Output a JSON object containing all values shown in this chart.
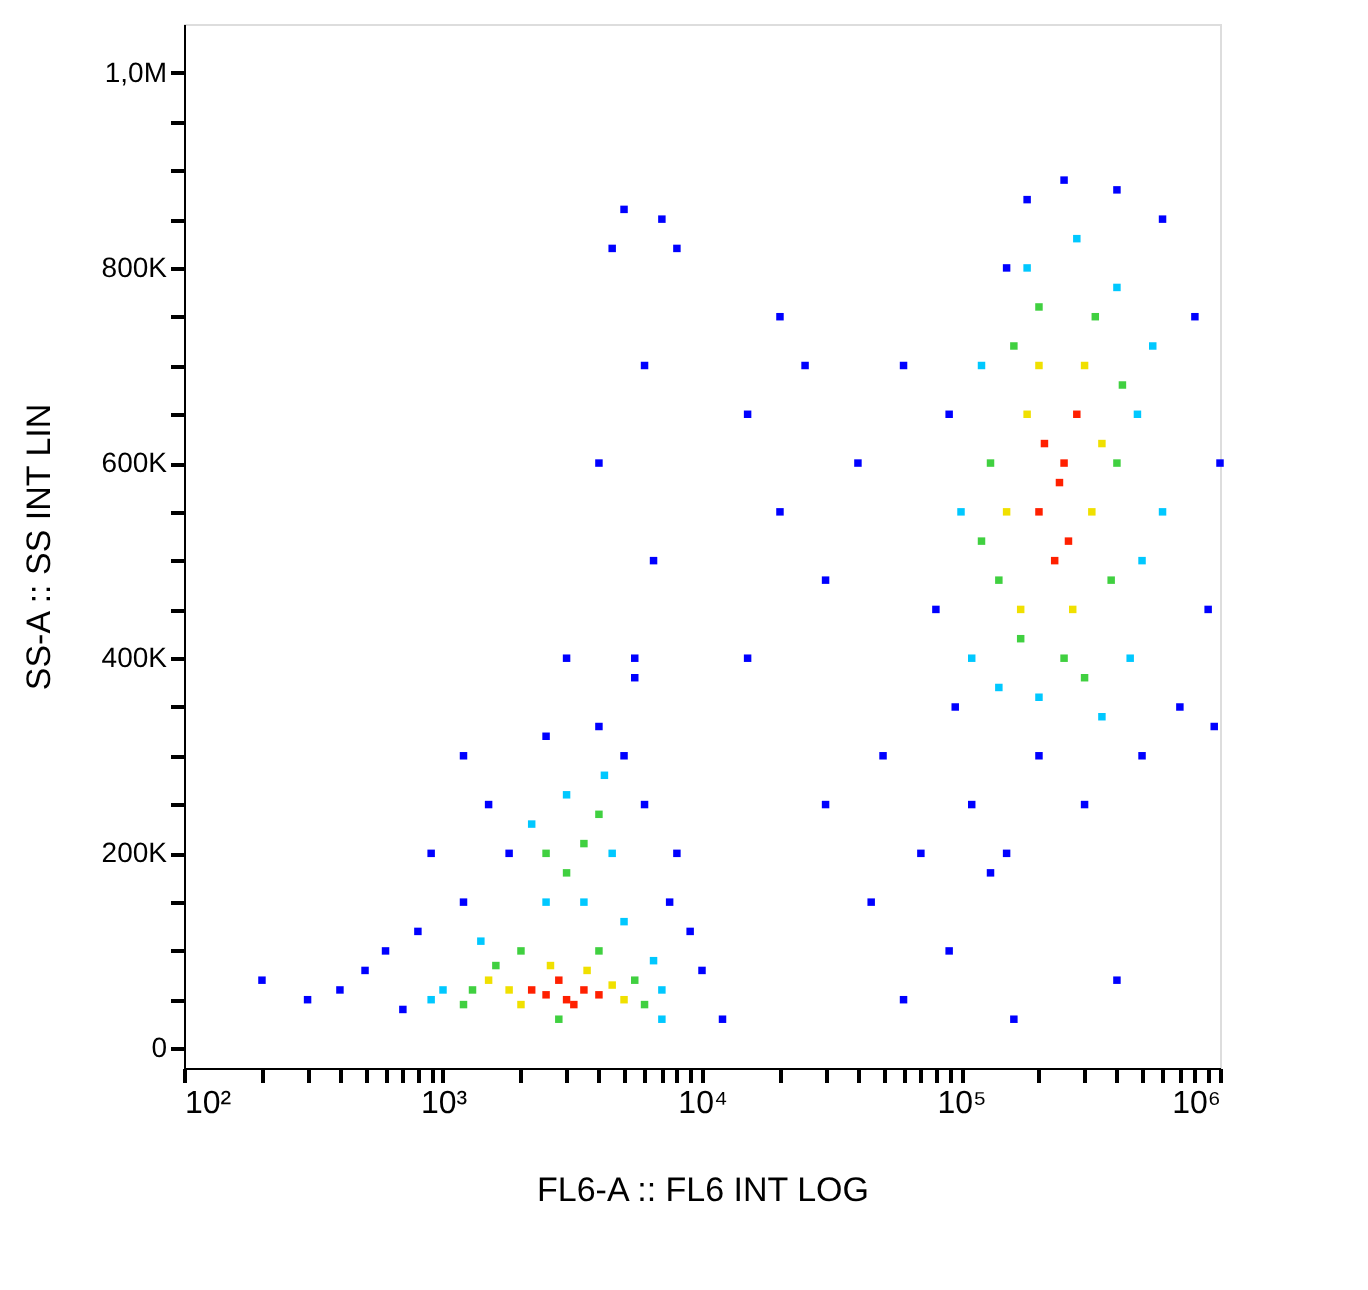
{
  "chart_data": {
    "type": "scatter",
    "xlabel": "FL6-A :: FL6 INT LOG",
    "ylabel": "SS-A :: SS INT LIN",
    "log": "x",
    "marker": "square",
    "grid": false,
    "xlim": [
      100,
      1000000
    ],
    "ylim": [
      -20000,
      1050000
    ],
    "xticks": [
      {
        "value": 100,
        "label": "10²"
      },
      {
        "value": 200,
        "label": null
      },
      {
        "value": 300,
        "label": null
      },
      {
        "value": 400,
        "label": null
      },
      {
        "value": 500,
        "label": null
      },
      {
        "value": 600,
        "label": null
      },
      {
        "value": 700,
        "label": null
      },
      {
        "value": 800,
        "label": null
      },
      {
        "value": 900,
        "label": null
      },
      {
        "value": 1000,
        "label": "10³"
      },
      {
        "value": 2000,
        "label": null
      },
      {
        "value": 3000,
        "label": null
      },
      {
        "value": 4000,
        "label": null
      },
      {
        "value": 5000,
        "label": null
      },
      {
        "value": 6000,
        "label": null
      },
      {
        "value": 7000,
        "label": null
      },
      {
        "value": 8000,
        "label": null
      },
      {
        "value": 9000,
        "label": null
      },
      {
        "value": 10000,
        "label": "10⁴"
      },
      {
        "value": 20000,
        "label": null
      },
      {
        "value": 30000,
        "label": null
      },
      {
        "value": 40000,
        "label": null
      },
      {
        "value": 50000,
        "label": null
      },
      {
        "value": 60000,
        "label": null
      },
      {
        "value": 70000,
        "label": null
      },
      {
        "value": 80000,
        "label": null
      },
      {
        "value": 90000,
        "label": null
      },
      {
        "value": 100000,
        "label": "10⁵"
      },
      {
        "value": 200000,
        "label": null
      },
      {
        "value": 300000,
        "label": null
      },
      {
        "value": 400000,
        "label": null
      },
      {
        "value": 500000,
        "label": null
      },
      {
        "value": 600000,
        "label": null
      },
      {
        "value": 700000,
        "label": null
      },
      {
        "value": 800000,
        "label": null
      },
      {
        "value": 900000,
        "label": null
      },
      {
        "value": 1000000,
        "label": "10⁶"
      }
    ],
    "yticks": [
      {
        "value": 0,
        "label": "0"
      },
      {
        "value": 50000,
        "label": null
      },
      {
        "value": 100000,
        "label": null
      },
      {
        "value": 150000,
        "label": null
      },
      {
        "value": 200000,
        "label": "200K"
      },
      {
        "value": 250000,
        "label": null
      },
      {
        "value": 300000,
        "label": null
      },
      {
        "value": 350000,
        "label": null
      },
      {
        "value": 400000,
        "label": "400K"
      },
      {
        "value": 450000,
        "label": null
      },
      {
        "value": 500000,
        "label": null
      },
      {
        "value": 550000,
        "label": null
      },
      {
        "value": 600000,
        "label": "600K"
      },
      {
        "value": 650000,
        "label": null
      },
      {
        "value": 700000,
        "label": null
      },
      {
        "value": 750000,
        "label": null
      },
      {
        "value": 800000,
        "label": "800K"
      },
      {
        "value": 850000,
        "label": null
      },
      {
        "value": 900000,
        "label": null
      },
      {
        "value": 950000,
        "label": null
      },
      {
        "value": 1000000,
        "label": "1,0M"
      }
    ],
    "series": [
      {
        "color": "#0000ff",
        "x": [
          300,
          200,
          500,
          700,
          800,
          1200,
          1800,
          1500,
          2500,
          4000,
          5000,
          6000,
          8000,
          9000,
          10000,
          12000,
          7500,
          5500,
          4000,
          4500,
          5000,
          6000,
          7000,
          8000,
          6500,
          5500,
          3000,
          1200,
          900,
          600,
          400,
          15000,
          20000,
          25000,
          30000,
          40000,
          50000,
          15000,
          60000,
          70000,
          30000,
          80000,
          20000,
          45000,
          90000,
          60000,
          90000,
          95000,
          110000,
          150000,
          200000,
          300000,
          500000,
          700000,
          900000,
          1000000,
          800000,
          600000,
          400000,
          250000,
          180000,
          150000,
          130000,
          400000,
          160000,
          950000
        ],
        "values": [
          50000,
          70000,
          80000,
          40000,
          120000,
          150000,
          200000,
          250000,
          320000,
          330000,
          300000,
          250000,
          200000,
          120000,
          80000,
          30000,
          150000,
          380000,
          600000,
          820000,
          860000,
          700000,
          850000,
          820000,
          500000,
          400000,
          400000,
          300000,
          200000,
          100000,
          60000,
          650000,
          550000,
          700000,
          480000,
          600000,
          300000,
          400000,
          700000,
          200000,
          250000,
          450000,
          750000,
          150000,
          100000,
          50000,
          650000,
          350000,
          250000,
          200000,
          300000,
          250000,
          300000,
          350000,
          450000,
          600000,
          750000,
          850000,
          880000,
          890000,
          870000,
          800000,
          180000,
          70000,
          30000,
          330000
        ]
      },
      {
        "color": "#00c8ff",
        "x": [
          1000,
          900,
          7000,
          6500,
          2500,
          3500,
          4500,
          2200,
          3000,
          4200,
          1400,
          5000,
          7000,
          110000,
          100000,
          120000,
          180000,
          280000,
          400000,
          480000,
          500000,
          450000,
          200000,
          140000,
          350000,
          550000,
          600000
        ],
        "values": [
          60000,
          50000,
          60000,
          90000,
          150000,
          150000,
          200000,
          230000,
          260000,
          280000,
          110000,
          130000,
          30000,
          400000,
          550000,
          700000,
          800000,
          830000,
          780000,
          650000,
          500000,
          400000,
          360000,
          370000,
          340000,
          720000,
          550000
        ]
      },
      {
        "color": "#40d040",
        "x": [
          1300,
          1600,
          5500,
          6000,
          2000,
          4000,
          3000,
          3500,
          2500,
          4000,
          1200,
          2800,
          140000,
          130000,
          160000,
          200000,
          330000,
          400000,
          380000,
          250000,
          170000,
          300000,
          420000,
          120000
        ],
        "values": [
          60000,
          85000,
          70000,
          45000,
          100000,
          100000,
          180000,
          210000,
          200000,
          240000,
          45000,
          30000,
          480000,
          600000,
          720000,
          760000,
          750000,
          600000,
          480000,
          400000,
          420000,
          380000,
          680000,
          520000
        ]
      },
      {
        "color": "#f0e000",
        "x": [
          1800,
          2000,
          4500,
          5000,
          2600,
          3600,
          1500,
          170000,
          180000,
          300000,
          320000,
          200000,
          150000,
          270000,
          350000
        ],
        "values": [
          60000,
          45000,
          65000,
          50000,
          85000,
          80000,
          70000,
          450000,
          650000,
          700000,
          550000,
          700000,
          550000,
          450000,
          620000
        ]
      },
      {
        "color": "#ff2000",
        "x": [
          2500,
          3000,
          3500,
          2800,
          3200,
          4000,
          2200,
          200000,
          250000,
          230000,
          280000,
          210000,
          260000,
          240000
        ],
        "values": [
          55000,
          50000,
          60000,
          70000,
          45000,
          55000,
          60000,
          550000,
          600000,
          500000,
          650000,
          620000,
          520000,
          580000
        ]
      }
    ]
  }
}
